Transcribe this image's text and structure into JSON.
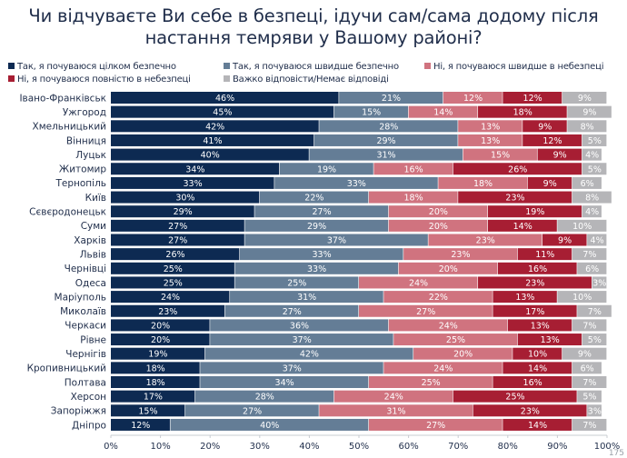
{
  "page_number": "175",
  "chart_data": {
    "type": "bar",
    "orientation": "horizontal",
    "stacked": true,
    "title": "Чи відчуваєте Ви себе в безпеці, ідучи сам/сама додому після настання темряви у Вашому районі?",
    "title_lines": [
      "Чи відчуваєте Ви себе в безпеці, ідучи сам/сама додому після",
      "настання темряви у Вашому районі?"
    ],
    "xlabel": "",
    "ylabel": "",
    "xlim": [
      0,
      100
    ],
    "x_ticks": [
      "0%",
      "10%",
      "20%",
      "30%",
      "40%",
      "50%",
      "60%",
      "70%",
      "80%",
      "90%",
      "100%"
    ],
    "grid": false,
    "legend_position": "top",
    "categories": [
      "Івано-Франківськ",
      "Ужгород",
      "Хмельницький",
      "Вінниця",
      "Луцьк",
      "Житомир",
      "Тернопіль",
      "Київ",
      "Сєвєродонецьк",
      "Суми",
      "Харків",
      "Львів",
      "Чернівці",
      "Одеса",
      "Маріуполь",
      "Миколаїв",
      "Черкаси",
      "Рівне",
      "Чернігів",
      "Кропивницький",
      "Полтава",
      "Херсон",
      "Запоріжжя",
      "Дніпро"
    ],
    "series": [
      {
        "name": "Так, я почуваюся цілком безпечно",
        "color": "#0d2a52",
        "values": [
          46,
          45,
          42,
          41,
          40,
          34,
          33,
          30,
          29,
          27,
          27,
          26,
          25,
          25,
          24,
          23,
          20,
          20,
          19,
          18,
          18,
          17,
          15,
          12
        ]
      },
      {
        "name": "Так, я почуваюся швидше безпечно",
        "color": "#647d96",
        "values": [
          21,
          15,
          28,
          29,
          31,
          19,
          33,
          22,
          27,
          29,
          37,
          33,
          33,
          25,
          31,
          27,
          36,
          37,
          42,
          37,
          34,
          28,
          27,
          40
        ]
      },
      {
        "name": "Ні, я почуваюся швидше в небезпеці",
        "color": "#d0737f",
        "values": [
          12,
          14,
          13,
          13,
          15,
          16,
          18,
          18,
          20,
          20,
          23,
          23,
          20,
          24,
          22,
          27,
          24,
          25,
          20,
          24,
          25,
          24,
          31,
          27
        ]
      },
      {
        "name": "Ні, я почуваюся повністю в небезпеці",
        "color": "#a71e33",
        "values": [
          12,
          18,
          9,
          12,
          9,
          26,
          9,
          23,
          19,
          14,
          9,
          11,
          16,
          23,
          13,
          17,
          13,
          13,
          10,
          14,
          16,
          25,
          23,
          14
        ]
      },
      {
        "name": "Важко відповісти/Немає відповіді",
        "color": "#b5b5b8",
        "values": [
          9,
          9,
          8,
          5,
          4,
          5,
          6,
          8,
          4,
          10,
          4,
          7,
          6,
          3,
          10,
          7,
          7,
          5,
          9,
          6,
          7,
          5,
          3,
          7
        ]
      }
    ]
  }
}
